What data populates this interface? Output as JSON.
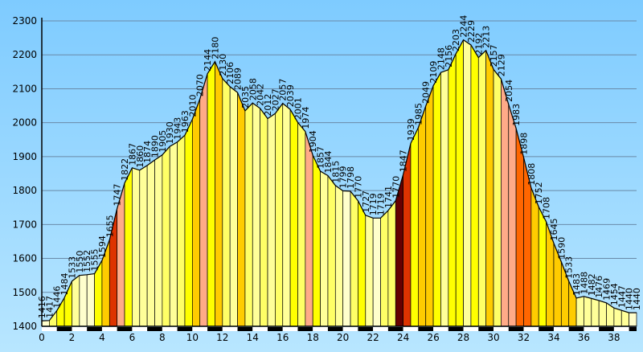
{
  "chart_data": {
    "type": "area",
    "title": "",
    "xlabel": "",
    "ylabel": "",
    "xlim": [
      0,
      39.5
    ],
    "ylim": [
      1400,
      2300
    ],
    "x_ticks": [
      0,
      2,
      4,
      6,
      8,
      10,
      12,
      14,
      16,
      18,
      20,
      22,
      24,
      26,
      28,
      30,
      32,
      34,
      36,
      38
    ],
    "y_ticks": [
      1400,
      1500,
      1600,
      1700,
      1800,
      1900,
      2000,
      2100,
      2200,
      2300
    ],
    "grid": true,
    "legend": "none",
    "x": [
      0.0,
      0.5,
      1.0,
      1.5,
      2.0,
      2.5,
      3.0,
      3.5,
      4.0,
      4.5,
      5.0,
      5.5,
      6.0,
      6.5,
      7.0,
      7.5,
      8.0,
      8.5,
      9.0,
      9.5,
      10.0,
      10.5,
      11.0,
      11.5,
      12.0,
      12.5,
      13.0,
      13.5,
      14.0,
      14.5,
      15.0,
      15.5,
      16.0,
      16.5,
      17.0,
      17.5,
      18.0,
      18.5,
      19.0,
      19.5,
      20.0,
      20.5,
      21.0,
      21.5,
      22.0,
      22.5,
      23.0,
      23.5,
      24.0,
      24.5,
      25.0,
      25.5,
      26.0,
      26.5,
      27.0,
      27.5,
      28.0,
      28.5,
      29.0,
      29.5,
      30.0,
      30.5,
      31.0,
      31.5,
      32.0,
      32.5,
      33.0,
      33.5,
      34.0,
      34.5,
      35.0,
      35.5,
      36.0,
      36.5,
      37.0,
      37.5,
      38.0,
      38.5,
      39.0,
      39.5
    ],
    "values": [
      1416,
      1417,
      1446,
      1484,
      1533,
      1550,
      1552,
      1555,
      1594,
      1655,
      1747,
      1822,
      1867,
      1860,
      1874,
      1890,
      1905,
      1930,
      1943,
      1963,
      2010,
      2070,
      2144,
      2180,
      2130,
      2106,
      2089,
      2035,
      2058,
      2042,
      2012,
      2027,
      2057,
      2039,
      2001,
      1974,
      1904,
      1857,
      1844,
      1815,
      1799,
      1798,
      1770,
      1727,
      1719,
      1719,
      1741,
      1770,
      1847,
      1939,
      1985,
      2049,
      2109,
      2148,
      2156,
      2203,
      2244,
      2229,
      2192,
      2213,
      2157,
      2129,
      2054,
      1983,
      1898,
      1808,
      1752,
      1708,
      1645,
      1590,
      1533,
      1483,
      1488,
      1482,
      1476,
      1469,
      1454,
      1447,
      1440,
      1440
    ],
    "colors": [
      "#ffffcc",
      "#ffff99",
      "#ffff66",
      "#ffff00",
      "#ffcc00",
      "#ffaa88",
      "#ff6600",
      "#dd3300",
      "#660000"
    ],
    "background": "#80c8ff",
    "mile_bar": "#000000"
  }
}
